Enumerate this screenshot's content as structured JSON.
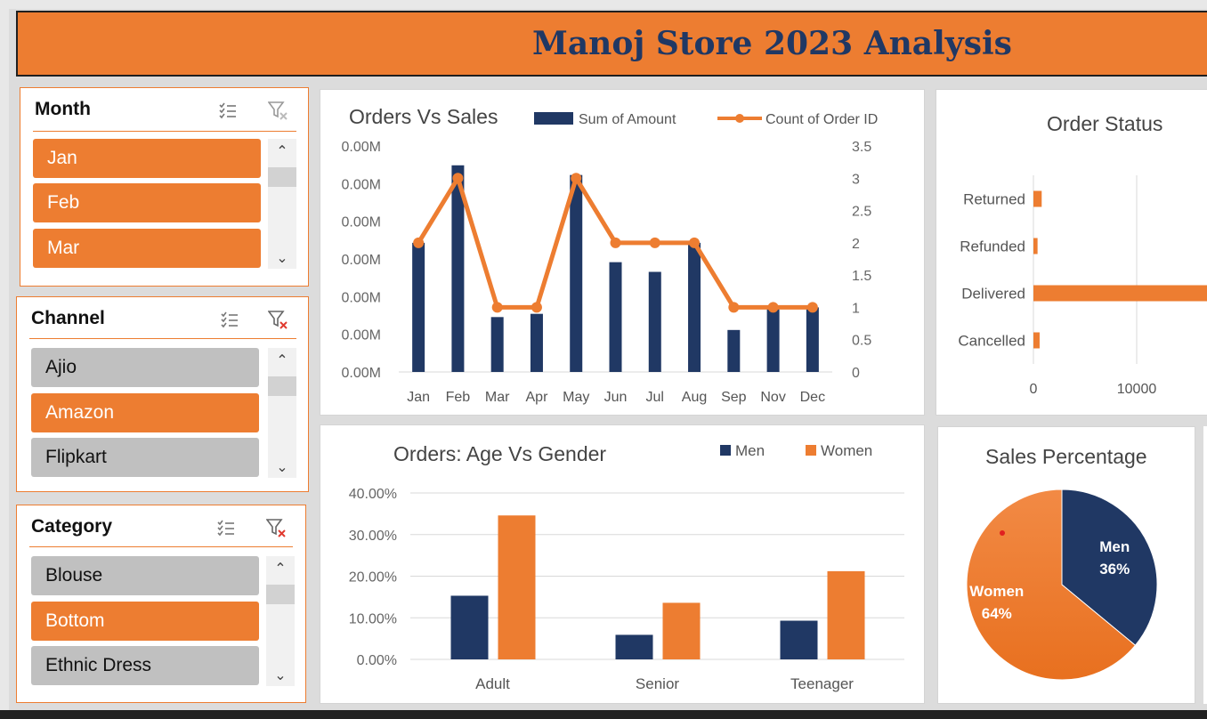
{
  "header": {
    "title": "Manoj Store 2023 Analysis"
  },
  "slicers": {
    "month": {
      "title": "Month",
      "items": [
        {
          "label": "Jan",
          "selected": true
        },
        {
          "label": "Feb",
          "selected": true
        },
        {
          "label": "Mar",
          "selected": true
        }
      ]
    },
    "channel": {
      "title": "Channel",
      "items": [
        {
          "label": "Ajio",
          "selected": false
        },
        {
          "label": "Amazon",
          "selected": true
        },
        {
          "label": "Flipkart",
          "selected": false
        }
      ]
    },
    "category": {
      "title": "Category",
      "items": [
        {
          "label": "Blouse",
          "selected": false
        },
        {
          "label": "Bottom",
          "selected": true
        },
        {
          "label": "Ethnic Dress",
          "selected": false
        }
      ]
    }
  },
  "icons": {
    "multi_select": "multi-select-icon",
    "clear_filter": "clear-filter-icon",
    "scroll_up": "chevron-up-icon",
    "scroll_down": "chevron-down-icon"
  },
  "colors": {
    "orange": "#ed7d31",
    "navy": "#203864",
    "grey": "#c0c0c0"
  },
  "chart_data": [
    {
      "id": "orders_vs_sales",
      "type": "bar",
      "title": "Orders Vs Sales",
      "categories": [
        "Jan",
        "Feb",
        "Mar",
        "Apr",
        "May",
        "Jun",
        "Jul",
        "Aug",
        "Sep",
        "Nov",
        "Dec"
      ],
      "series": [
        {
          "name": "Sum of Amount",
          "type": "bar",
          "axis": "left",
          "values": [
            2.0,
            3.2,
            0.85,
            0.9,
            3.05,
            1.7,
            1.55,
            2.0,
            0.65,
            1.0,
            1.0
          ]
        },
        {
          "name": "Count of Order ID",
          "type": "line",
          "axis": "right",
          "values": [
            2,
            3,
            1,
            1,
            3,
            2,
            2,
            2,
            1,
            1,
            1
          ]
        }
      ],
      "y_left_ticks": [
        "0.00M",
        "0.00M",
        "0.00M",
        "0.00M",
        "0.00M",
        "0.00M",
        "0.00M"
      ],
      "y_right_ticks": [
        "0",
        "0.5",
        "1",
        "1.5",
        "2",
        "2.5",
        "3",
        "3.5"
      ],
      "ylim": [
        0,
        3.5
      ],
      "legend": "top",
      "grid": false
    },
    {
      "id": "order_status",
      "type": "bar",
      "orientation": "horizontal",
      "title": "Order Status",
      "categories": [
        "Returned",
        "Refunded",
        "Delivered",
        "Cancelled"
      ],
      "values": [
        800,
        400,
        20000,
        600
      ],
      "x_ticks": [
        "0",
        "10000"
      ],
      "grid": true
    },
    {
      "id": "age_vs_gender",
      "type": "bar",
      "title": "Orders: Age Vs Gender",
      "categories": [
        "Adult",
        "Senior",
        "Teenager"
      ],
      "series": [
        {
          "name": "Men",
          "values": [
            15.3,
            5.9,
            9.3
          ]
        },
        {
          "name": "Women",
          "values": [
            34.6,
            13.6,
            21.2
          ]
        }
      ],
      "y_ticks": [
        "0.00%",
        "10.00%",
        "20.00%",
        "30.00%",
        "40.00%"
      ],
      "ylim": [
        0,
        40
      ],
      "legend": "top-right",
      "grid": true
    },
    {
      "id": "sales_percentage",
      "type": "pie",
      "title": "Sales Percentage",
      "slices": [
        {
          "name": "Men",
          "label": "36%",
          "value": 36
        },
        {
          "name": "Women",
          "label": "64%",
          "value": 64
        }
      ]
    }
  ]
}
